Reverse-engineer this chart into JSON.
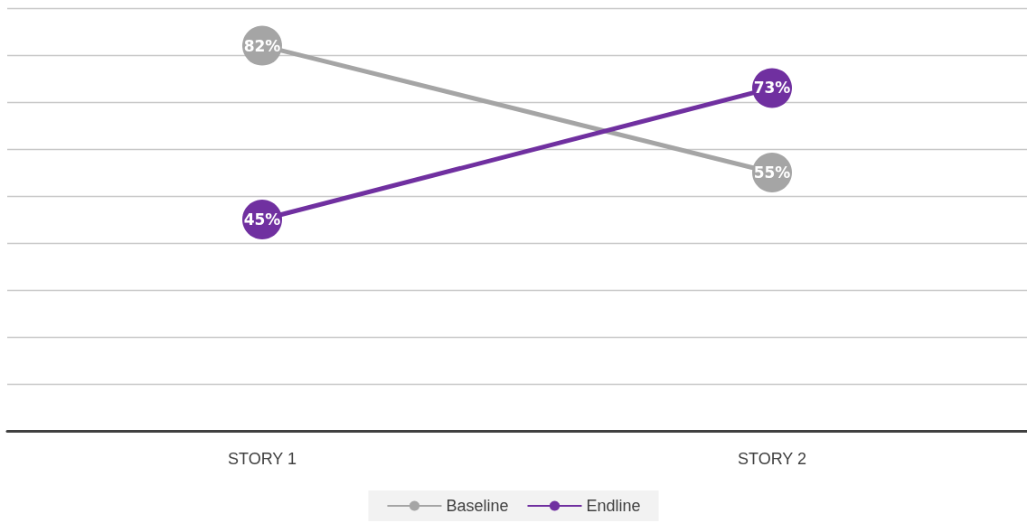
{
  "chart_data": {
    "type": "line",
    "categories": [
      "STORY 1",
      "STORY 2"
    ],
    "series": [
      {
        "name": "Baseline",
        "color": "#a5a5a5",
        "values": [
          82,
          55
        ],
        "value_labels": [
          "82%",
          "55%"
        ]
      },
      {
        "name": "Endline",
        "color": "#7030a0",
        "values": [
          45,
          73
        ],
        "value_labels": [
          "45%",
          "73%"
        ]
      }
    ],
    "ylim": [
      0,
      90
    ],
    "yticks": [
      {
        "value": 0,
        "label": null
      },
      {
        "value": 10,
        "label": null
      },
      {
        "value": 20,
        "label": null
      },
      {
        "value": 30,
        "label": null
      },
      {
        "value": 40,
        "label": null
      },
      {
        "value": 50,
        "label": null
      },
      {
        "value": 60,
        "label": null
      },
      {
        "value": 70,
        "label": null
      },
      {
        "value": 80,
        "label": null
      },
      {
        "value": 90,
        "label": null
      }
    ],
    "grid": "y",
    "legend": "bottom",
    "marker": "circle",
    "tick_labels": "x"
  }
}
